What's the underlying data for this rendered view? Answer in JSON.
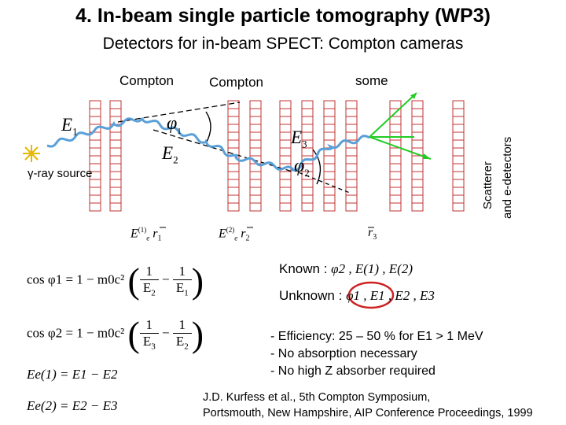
{
  "title": "4. In-beam single particle tomography (WP3)",
  "subtitle": "Detectors for in-beam SPECT: Compton cameras",
  "diagram": {
    "label_compton_1": "Compton",
    "label_compton_2": "Compton",
    "label_some": "some",
    "label_scatterer": "Scatterer",
    "label_e_detectors": "and e-detectors",
    "source_label": "γ-ray source",
    "e1": "E",
    "e1_sub": "1",
    "e2": "E",
    "e2_sub": "2",
    "e3": "E",
    "e3_sub": "3",
    "phi1": "φ",
    "phi1_sub": "1",
    "phi2": "φ",
    "phi2_sub": "2",
    "det1_label": "E",
    "det1_sup": "(1)",
    "det1_sub": "e",
    "det1_r": "r",
    "det1_r_sub": "1",
    "det2_label": "E",
    "det2_sup": "(2)",
    "det2_sub": "e",
    "det2_r": "r",
    "det2_r_sub": "2",
    "det3_r": "r",
    "det3_r_sub": "3",
    "colors": {
      "wave": "#5aa0d8",
      "green_track": "#22cc22",
      "sun": "#e6b800",
      "circle": "#cc2222"
    }
  },
  "known": {
    "label": "Known :",
    "values": "φ2 , E(1) , E(2)"
  },
  "unknown": {
    "label": "Unknown :",
    "values": "φ1 , E1 , E2 , E3"
  },
  "equations": {
    "cos1_lhs": "cos φ1 = 1 − m0c²",
    "cos2_lhs": "cos φ2 = 1 − m0c²",
    "eq3": "Ee(1) = E1 − E2",
    "eq4": "Ee(2) = E2 − E3"
  },
  "bullets": [
    "- Efficiency: 25 – 50 % for E1 > 1 MeV",
    "- No absorption necessary",
    "- No high Z absorber required"
  ],
  "reference": {
    "line1": "J.D. Kurfess et al., 5th Compton Symposium,",
    "line2": "Portsmouth, New Hampshire, AIP Conference Proceedings, 1999"
  }
}
